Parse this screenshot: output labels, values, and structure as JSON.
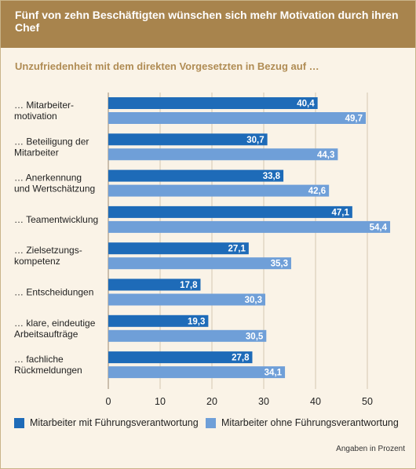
{
  "title": "Fünf von zehn Beschäftigten wünschen sich mehr Motivation durch ihren Chef",
  "subtitle": "Unzufriedenheit mit dem direkten Vorgesetzten in Bezug auf …",
  "source_note": "Angaben in Prozent",
  "colors": {
    "header_bg": "#a8844d",
    "subtitle": "#b08c54",
    "panel_bg": "#faf3e7",
    "series_with": "#1e6bb8",
    "series_without": "#6f9fd8"
  },
  "chart_data": {
    "type": "bar",
    "orientation": "horizontal",
    "title": "Fünf von zehn Beschäftigten wünschen sich mehr Motivation durch ihren Chef",
    "subtitle": "Unzufriedenheit mit dem direkten Vorgesetzten in Bezug auf …",
    "xlabel": "",
    "ylabel": "",
    "xlim": [
      0,
      55
    ],
    "xticks": [
      0,
      10,
      20,
      30,
      40,
      50
    ],
    "grid": true,
    "legend_position": "bottom",
    "categories": [
      [
        "… Mitarbeiter-",
        "motivation"
      ],
      [
        "… Beteiligung der",
        "Mitarbeiter"
      ],
      [
        "… Anerkennung",
        "und Wertschätzung"
      ],
      [
        "… Teamentwicklung"
      ],
      [
        "… Zielsetzungs-",
        "kompetenz"
      ],
      [
        "… Entscheidungen"
      ],
      [
        "… klare, eindeutige",
        "Arbeitsaufträge"
      ],
      [
        "… fachliche",
        "Rückmeldungen"
      ]
    ],
    "series": [
      {
        "name": "Mitarbeiter mit Führungsverantwortung",
        "color": "#1e6bb8",
        "values": [
          40.4,
          30.7,
          33.8,
          47.1,
          27.1,
          17.8,
          19.3,
          27.8
        ],
        "labels": [
          "40,4",
          "30,7",
          "33,8",
          "47,1",
          "27,1",
          "17,8",
          "19,3",
          "27,8"
        ]
      },
      {
        "name": "Mitarbeiter ohne Führungsverantwortung",
        "color": "#6f9fd8",
        "values": [
          49.7,
          44.3,
          42.6,
          54.4,
          35.3,
          30.3,
          30.5,
          34.1
        ],
        "labels": [
          "49,7",
          "44,3",
          "42,6",
          "54,4",
          "35,3",
          "30,3",
          "30,5",
          "34,1"
        ]
      }
    ]
  }
}
